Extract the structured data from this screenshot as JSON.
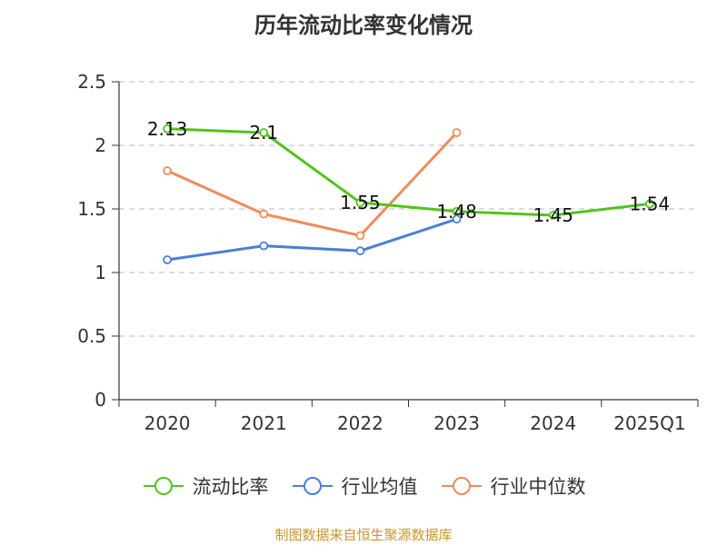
{
  "chart_data": {
    "type": "line",
    "title": "历年流动比率变化情况",
    "categories": [
      "2020",
      "2021",
      "2022",
      "2023",
      "2024",
      "2025Q1"
    ],
    "ylim": [
      0,
      2.5
    ],
    "yticks": [
      "0",
      "0.5",
      "1",
      "1.5",
      "2",
      "2.5"
    ],
    "ytick_values": [
      0,
      0.5,
      1,
      1.5,
      2,
      2.5
    ],
    "grid": true,
    "legend_position": "bottom",
    "series": [
      {
        "name": "流动比率",
        "color": "#52c41a",
        "values": [
          2.13,
          2.1,
          1.55,
          1.48,
          1.45,
          1.54
        ],
        "labels": [
          "2.13",
          "2.1",
          "1.55",
          "1.48",
          "1.45",
          "1.54"
        ]
      },
      {
        "name": "行业均值",
        "color": "#4a7fd6",
        "values": [
          1.1,
          1.21,
          1.17,
          1.42,
          null,
          null
        ]
      },
      {
        "name": "行业中位数",
        "color": "#f08c5a",
        "values": [
          1.8,
          1.46,
          1.29,
          2.1,
          null,
          null
        ]
      }
    ]
  },
  "source": "制图数据来自恒生聚源数据库"
}
